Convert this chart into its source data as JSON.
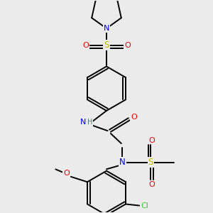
{
  "bg_color": "#ebebeb",
  "atom_colors": {
    "C": "#000000",
    "N": "#0000ee",
    "O": "#ee0000",
    "S": "#bbbb00",
    "Cl": "#33cc33",
    "H": "#557777"
  },
  "bond_color": "#000000",
  "bond_width": 1.4
}
